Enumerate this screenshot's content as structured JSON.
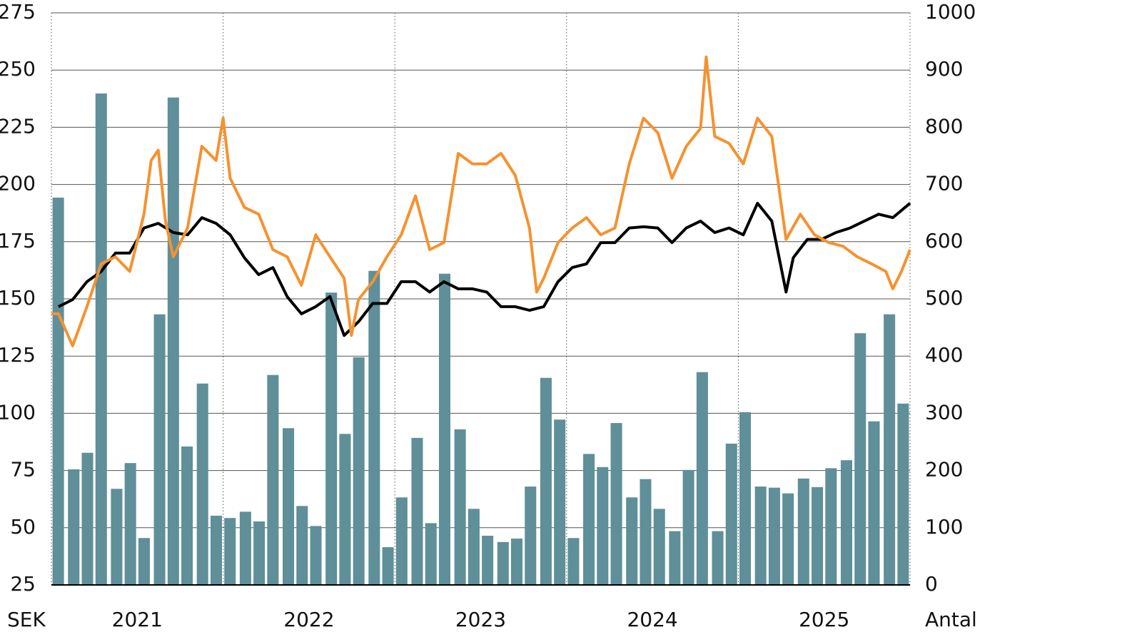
{
  "chart_data": {
    "type": "bar_line",
    "ylabel": "SEK",
    "y2label": "Antal",
    "xlim": [
      2021,
      2026
    ],
    "xticks": [
      {
        "value": 2021.5,
        "label": "2021"
      },
      {
        "value": 2022.5,
        "label": "2022"
      },
      {
        "value": 2023.5,
        "label": "2023"
      },
      {
        "value": 2024.5,
        "label": "2024"
      },
      {
        "value": 2025.5,
        "label": "2025"
      }
    ],
    "xgrid": [
      2021,
      2022,
      2023,
      2024,
      2025,
      2026
    ],
    "ylim": [
      25,
      275
    ],
    "yticks": [
      25,
      50,
      75,
      100,
      125,
      150,
      175,
      200,
      225,
      250,
      275
    ],
    "y2lim": [
      0,
      1000
    ],
    "y2ticks": [
      0,
      100,
      200,
      300,
      400,
      500,
      600,
      700,
      800,
      900,
      1000
    ],
    "grid": true,
    "series": [
      {
        "type": "bar",
        "axis": "y2",
        "color": "#5f8f99",
        "x": [
          2021.04,
          2021.13,
          2021.21,
          2021.29,
          2021.38,
          2021.46,
          2021.54,
          2021.63,
          2021.71,
          2021.79,
          2021.88,
          2021.96,
          2022.04,
          2022.13,
          2022.21,
          2022.29,
          2022.38,
          2022.46,
          2022.54,
          2022.63,
          2022.71,
          2022.79,
          2022.88,
          2022.96,
          2023.04,
          2023.13,
          2023.21,
          2023.29,
          2023.38,
          2023.46,
          2023.54,
          2023.63,
          2023.71,
          2023.79,
          2023.88,
          2023.96,
          2024.04,
          2024.13,
          2024.21,
          2024.29,
          2024.38,
          2024.46,
          2024.54,
          2024.63,
          2024.71,
          2024.79,
          2024.88,
          2024.96,
          2025.04,
          2025.13,
          2025.21,
          2025.29,
          2025.38,
          2025.46,
          2025.54,
          2025.63,
          2025.71,
          2025.79,
          2025.88,
          2025.96
        ],
        "values": [
          677,
          202,
          231,
          859,
          168,
          213,
          82,
          473,
          852,
          242,
          352,
          121,
          117,
          128,
          111,
          367,
          274,
          138,
          103,
          511,
          264,
          398,
          549,
          66,
          153,
          257,
          108,
          544,
          272,
          133,
          86,
          75,
          81,
          172,
          362,
          289,
          82,
          229,
          206,
          283,
          153,
          185,
          133,
          94,
          201,
          372,
          94,
          247,
          302,
          172,
          170,
          160,
          186,
          171,
          204,
          218,
          440,
          286,
          473,
          317
        ]
      },
      {
        "type": "line",
        "axis": "y",
        "color": "#000000",
        "x": [
          2021.041,
          2021.124,
          2021.207,
          2021.29,
          2021.373,
          2021.456,
          2021.539,
          2021.622,
          2021.71,
          2021.793,
          2021.876,
          2021.959,
          2022.041,
          2022.124,
          2022.207,
          2022.29,
          2022.373,
          2022.456,
          2022.539,
          2022.622,
          2022.705,
          2022.788,
          2022.871,
          2022.954,
          2023.037,
          2023.12,
          2023.203,
          2023.286,
          2023.369,
          2023.452,
          2023.535,
          2023.618,
          2023.701,
          2023.784,
          2023.867,
          2023.95,
          2024.033,
          2024.116,
          2024.199,
          2024.282,
          2024.365,
          2024.448,
          2024.531,
          2024.614,
          2024.697,
          2024.78,
          2024.863,
          2024.946,
          2025.029,
          2025.112,
          2025.195,
          2025.278,
          2025.32,
          2025.402,
          2025.485,
          2025.568,
          2025.651,
          2025.734,
          2025.817,
          2025.9,
          2026.0
        ],
        "values": [
          146.6,
          149.7,
          157.5,
          162,
          170,
          170,
          181,
          183,
          179,
          178,
          185.5,
          183,
          178,
          168,
          160.6,
          163.7,
          151,
          143.5,
          146.6,
          151,
          134,
          140,
          148,
          148,
          157.5,
          157.5,
          153,
          157.5,
          154.4,
          154.4,
          153,
          146.6,
          146.6,
          145,
          146.6,
          157.5,
          163.7,
          165.3,
          174.6,
          174.6,
          181,
          181.5,
          181,
          174.6,
          181,
          184,
          179,
          181,
          178,
          191.8,
          184,
          153,
          168,
          176,
          176,
          179,
          181,
          184,
          187,
          185.5,
          191.8
        ]
      },
      {
        "type": "line",
        "axis": "y",
        "color": "#f5922f",
        "x": [
          2021.0,
          2021.041,
          2021.124,
          2021.207,
          2021.29,
          2021.373,
          2021.456,
          2021.539,
          2021.581,
          2021.622,
          2021.664,
          2021.71,
          2021.793,
          2021.876,
          2021.959,
          2022.0,
          2022.041,
          2022.124,
          2022.207,
          2022.29,
          2022.373,
          2022.456,
          2022.539,
          2022.622,
          2022.705,
          2022.747,
          2022.788,
          2022.871,
          2022.954,
          2023.037,
          2023.12,
          2023.203,
          2023.286,
          2023.369,
          2023.452,
          2023.535,
          2023.618,
          2023.701,
          2023.784,
          2023.826,
          2023.867,
          2023.95,
          2024.033,
          2024.116,
          2024.199,
          2024.282,
          2024.365,
          2024.448,
          2024.531,
          2024.614,
          2024.697,
          2024.78,
          2024.813,
          2024.863,
          2024.946,
          2025.029,
          2025.112,
          2025.195,
          2025.278,
          2025.361,
          2025.444,
          2025.527,
          2025.61,
          2025.693,
          2025.776,
          2025.859,
          2025.9,
          2025.95,
          2026.0
        ],
        "values": [
          143.5,
          143.5,
          129.5,
          146.6,
          165.3,
          168.4,
          162,
          187,
          210.5,
          215,
          184,
          168.4,
          181,
          216.7,
          210.5,
          229,
          202.7,
          190,
          187,
          171.5,
          168.4,
          156,
          178,
          168.4,
          159,
          134,
          149.7,
          157.5,
          168.4,
          178,
          195,
          171.5,
          174.6,
          213.6,
          209,
          209,
          213.6,
          204,
          181,
          153,
          159,
          174.6,
          181,
          185.5,
          178,
          181,
          209,
          229,
          222.6,
          202.7,
          216.7,
          224.5,
          255.7,
          221,
          218,
          209,
          229,
          221,
          176,
          187,
          178,
          174.6,
          173,
          168.4,
          165.3,
          162,
          154.4,
          162,
          171.5
        ]
      }
    ]
  }
}
